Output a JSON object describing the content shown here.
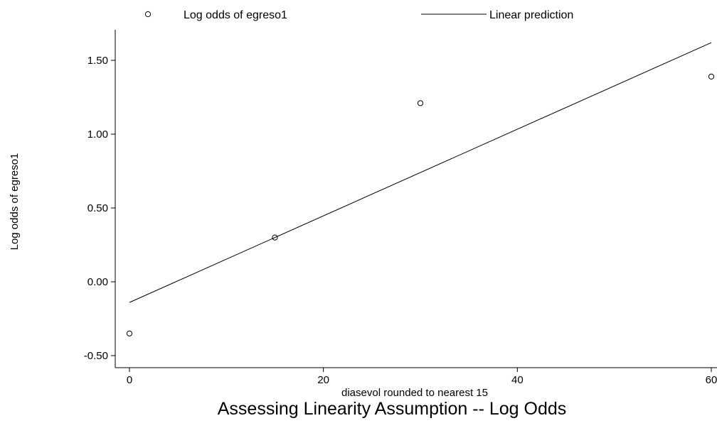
{
  "chart_data": {
    "type": "scatter",
    "title": "Assessing Linearity Assumption -- Log Odds",
    "xlabel": "diasevol rounded to nearest 15",
    "ylabel": "Log odds of egreso1",
    "xlim": [
      -2,
      62
    ],
    "ylim": [
      -0.58,
      1.7
    ],
    "xticks": [
      0,
      20,
      40,
      60
    ],
    "yticks": [
      -0.5,
      0,
      0.5,
      1,
      1.5
    ],
    "ytick_labels": [
      "-0.50",
      "0.00",
      "0.50",
      "1.00",
      "1.50"
    ],
    "grid": false,
    "legend_position": "top",
    "series": [
      {
        "name": "Log odds of egreso1",
        "kind": "scatter",
        "marker": "hollow-circle",
        "x": [
          0,
          15,
          30,
          60
        ],
        "y": [
          -0.35,
          0.3,
          1.21,
          1.39
        ]
      },
      {
        "name": "Linear prediction",
        "kind": "line",
        "x": [
          0,
          60
        ],
        "y": [
          -0.14,
          1.62
        ]
      }
    ]
  }
}
